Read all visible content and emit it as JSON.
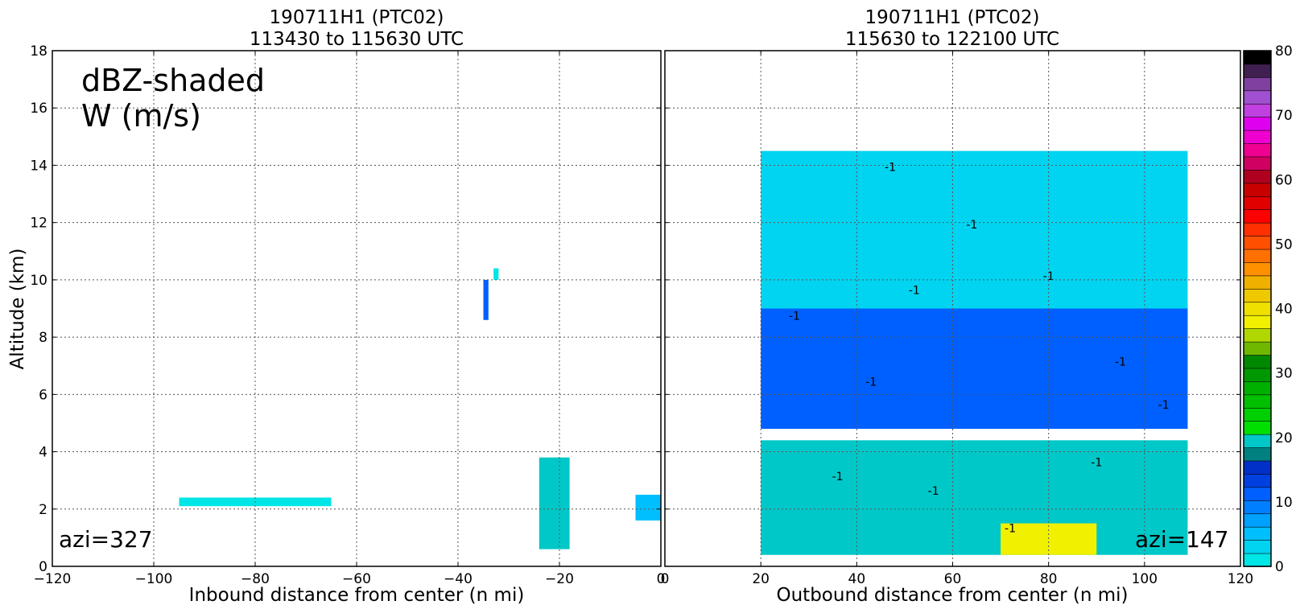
{
  "chart_data": [
    {
      "type": "heatmap",
      "title": "190711H1 (PTC02)",
      "subtitle": "113430 to 115630 UTC",
      "xlabel": "Inbound distance from center (n mi)",
      "ylabel": "Altitude (km)",
      "xlim": [
        -120,
        0
      ],
      "ylim": [
        0,
        18
      ],
      "xticks": [
        "−120",
        "−100",
        "−80",
        "−60",
        "−40",
        "−20",
        "0"
      ],
      "yticks": [
        "0",
        "2",
        "4",
        "6",
        "8",
        "10",
        "12",
        "14",
        "16",
        "18"
      ],
      "grid": true,
      "annotation_line1": "dBZ-shaded",
      "annotation_line2": "W (m/s)",
      "azimuth_label": "azi=327",
      "echo_regions": [
        {
          "x0": -24,
          "x1": -18,
          "y0": 0.6,
          "y1": 3.8,
          "dbz": 20
        },
        {
          "x0": -35,
          "x1": -34,
          "y0": 8.6,
          "y1": 10.0,
          "dbz": 12
        },
        {
          "x0": -33,
          "x1": -32,
          "y0": 10.0,
          "y1": 10.4,
          "dbz": 2
        },
        {
          "x0": -95,
          "x1": -65,
          "y0": 2.1,
          "y1": 2.4,
          "dbz": 2
        },
        {
          "x0": -5,
          "x1": 0,
          "y0": 1.6,
          "y1": 2.5,
          "dbz": 6
        }
      ]
    },
    {
      "type": "heatmap",
      "title": "190711H1 (PTC02)",
      "subtitle": "115630 to 122100 UTC",
      "xlabel": "Outbound distance from center (n mi)",
      "ylabel": "",
      "xlim": [
        0,
        120
      ],
      "ylim": [
        0,
        18
      ],
      "xticks": [
        "0",
        "20",
        "40",
        "60",
        "80",
        "100",
        "120"
      ],
      "yticks": [
        "0",
        "2",
        "4",
        "6",
        "8",
        "10",
        "12",
        "14",
        "16",
        "18"
      ],
      "grid": true,
      "azimuth_label": "azi=147",
      "contour_label": "-1",
      "echo_regions": [
        {
          "x0": 20,
          "x1": 109,
          "y0": 0.4,
          "y1": 4.4,
          "dbz": 20
        },
        {
          "x0": 20,
          "x1": 109,
          "y0": 4.8,
          "y1": 9.0,
          "dbz": 12
        },
        {
          "x0": 20,
          "x1": 109,
          "y0": 9.0,
          "y1": 14.5,
          "dbz": 4
        },
        {
          "x0": 70,
          "x1": 90,
          "y0": 0.4,
          "y1": 1.5,
          "dbz": 38
        }
      ]
    }
  ],
  "colorbar": {
    "min": 0,
    "max": 80,
    "ticks": [
      "0",
      "10",
      "20",
      "30",
      "40",
      "50",
      "60",
      "70",
      "80"
    ],
    "colors": [
      "#00e5e5",
      "#00d4f0",
      "#00bfff",
      "#00a0ff",
      "#0080ff",
      "#0060ff",
      "#0040e0",
      "#0030c8",
      "#008080",
      "#00c8c8",
      "#00e000",
      "#00d000",
      "#00c000",
      "#00b000",
      "#009800",
      "#008800",
      "#70b800",
      "#b0d800",
      "#f0f000",
      "#f0e000",
      "#f0c800",
      "#f0b000",
      "#ff9000",
      "#ff7000",
      "#ff5000",
      "#ff3000",
      "#ff0000",
      "#e00000",
      "#c80000",
      "#b00020",
      "#d00060",
      "#f00090",
      "#f000d0",
      "#e000f0",
      "#c040e0",
      "#a050d0",
      "#8040a0",
      "#402050",
      "#000000"
    ]
  }
}
